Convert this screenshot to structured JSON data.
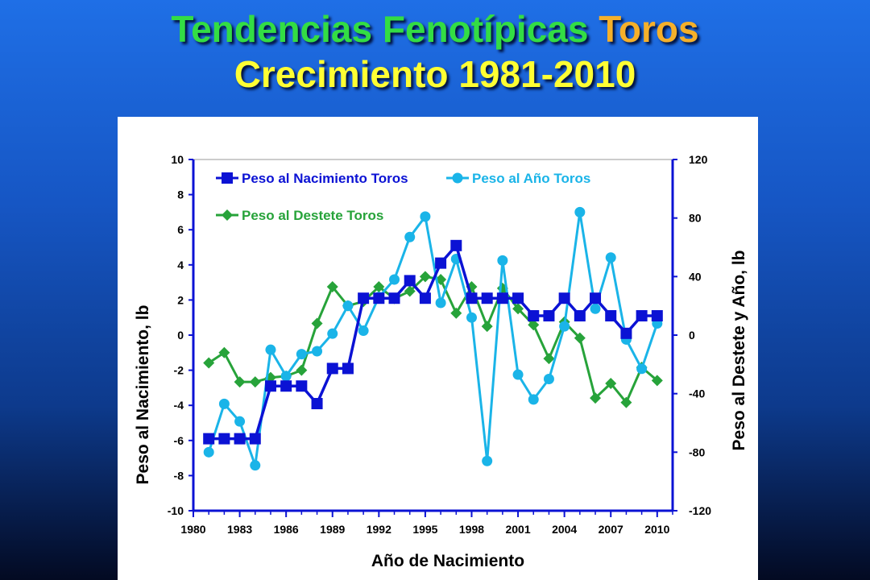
{
  "title": {
    "line1_part1": "Tendencias Fenotípicas",
    "line1_part2": "Toros",
    "line2": "Crecimiento 1981-2010"
  },
  "chart_data": {
    "type": "line",
    "xlabel": "Año de Nacimiento",
    "ylabel_left": "Peso al Nacimiento, lb",
    "ylabel_right": "Peso al Destete y Año, lb",
    "xlim": [
      1980,
      2011
    ],
    "ylim_left": [
      -10,
      10
    ],
    "ylim_right": [
      -120,
      120
    ],
    "x_ticks": [
      "1980",
      "1983",
      "1986",
      "1989",
      "1992",
      "1995",
      "1998",
      "2001",
      "2004",
      "2007",
      "2010"
    ],
    "y_left_ticks": [
      "10",
      "8",
      "6",
      "4",
      "2",
      "0",
      "-2",
      "-4",
      "-6",
      "-8",
      "-10"
    ],
    "y_right_ticks": [
      "120",
      "80",
      "40",
      "0",
      "-40",
      "-80",
      "-120"
    ],
    "grid": false,
    "legend_position": "top-left",
    "x": [
      1981,
      1982,
      1983,
      1984,
      1985,
      1986,
      1987,
      1988,
      1989,
      1990,
      1991,
      1992,
      1993,
      1994,
      1995,
      1996,
      1997,
      1998,
      1999,
      2000,
      2001,
      2002,
      2003,
      2004,
      2005,
      2006,
      2007,
      2008,
      2009,
      2010
    ],
    "series": [
      {
        "name": "Peso al Nacimiento Toros",
        "axis": "left",
        "color": "#0b12d4",
        "marker": "square",
        "values": [
          -5.9,
          -5.9,
          -5.9,
          -5.9,
          -2.9,
          -2.9,
          -2.9,
          -3.9,
          -1.9,
          -1.9,
          2.1,
          2.1,
          2.1,
          3.1,
          2.1,
          4.1,
          5.1,
          2.1,
          2.1,
          2.1,
          2.1,
          1.1,
          1.1,
          2.1,
          1.1,
          2.1,
          1.1,
          0.1,
          1.1,
          1.1
        ]
      },
      {
        "name": "Peso al Año Toros",
        "axis": "right",
        "color": "#1ab4e8",
        "marker": "circle",
        "values": [
          -80,
          -47,
          -59,
          -89,
          -10,
          -28,
          -13,
          -11,
          1,
          20,
          3,
          26,
          38,
          67,
          81,
          22,
          52,
          12,
          -86,
          51,
          -27,
          -44,
          -30,
          6,
          84,
          18,
          53,
          -3,
          -23,
          8
        ]
      },
      {
        "name": "Peso al Destete Toros",
        "axis": "right",
        "color": "#27a33a",
        "marker": "diamond",
        "values": [
          -19,
          -12,
          -32,
          -32,
          -29,
          -28,
          -24,
          8,
          33,
          20,
          23,
          33,
          25,
          30,
          40,
          38,
          15,
          33,
          6,
          32,
          18,
          7,
          -16,
          9,
          -2,
          -43,
          -33,
          -46,
          -22,
          -31
        ]
      }
    ]
  }
}
